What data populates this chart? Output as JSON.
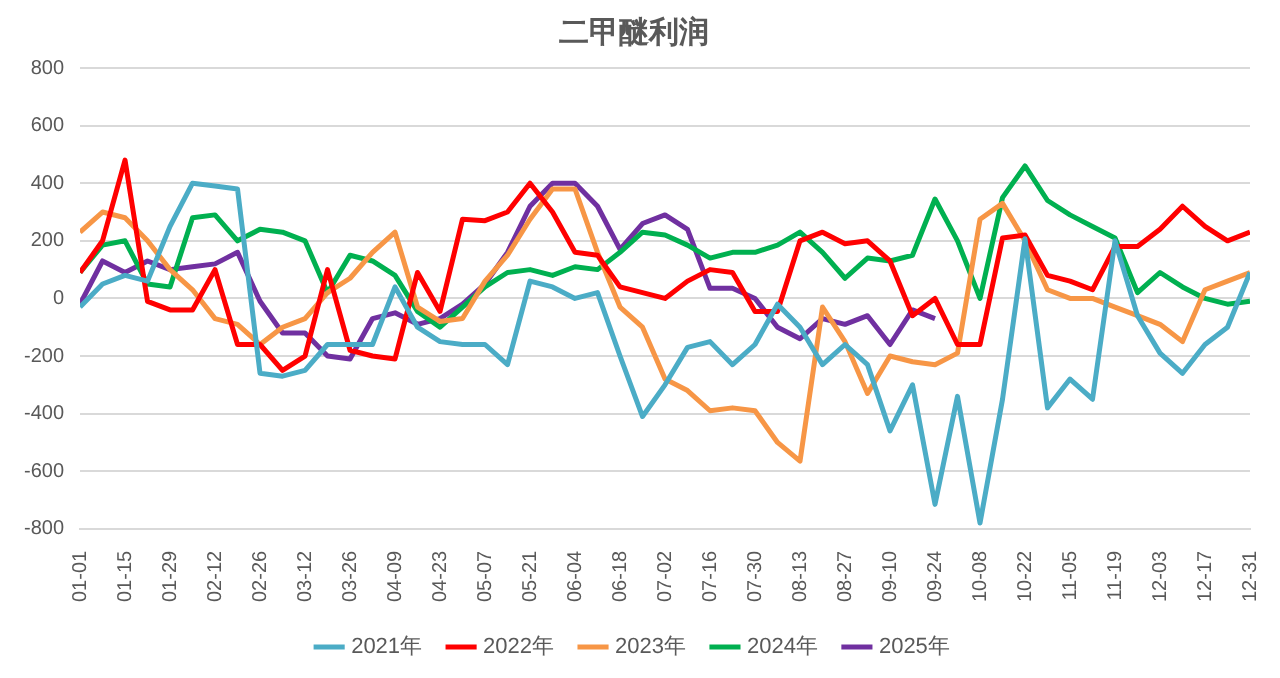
{
  "chart_data": {
    "type": "line",
    "title": "二甲醚利润",
    "x": [
      "--01-01",
      "--01-08",
      "--01-15",
      "--01-22",
      "--01-29",
      "--02-05",
      "--02-12",
      "--02-19",
      "--02-26",
      "--03-05",
      "--03-12",
      "--03-19",
      "--03-26",
      "--04-02",
      "--04-09",
      "--04-16",
      "--04-23",
      "--04-30",
      "--05-07",
      "--05-14",
      "--05-21",
      "--05-28",
      "--06-04",
      "--06-11",
      "--06-18",
      "--06-25",
      "--07-02",
      "--07-09",
      "--07-16",
      "--07-23",
      "--07-30",
      "--08-06",
      "--08-13",
      "--08-20",
      "--08-27",
      "--09-03",
      "--09-10",
      "--09-17",
      "--09-24",
      "--10-01",
      "--10-08",
      "--10-15",
      "--10-22",
      "--10-29",
      "--11-05",
      "--11-12",
      "--11-19",
      "--11-26",
      "--12-03",
      "--12-10",
      "--12-17",
      "--12-24",
      "--12-31"
    ],
    "series": [
      {
        "name": "2021年",
        "color": "#4bacc6",
        "values": [
          -30,
          50,
          80,
          60,
          250,
          400,
          390,
          380,
          -260,
          -270,
          -250,
          -160,
          -160,
          -160,
          40,
          -100,
          -150,
          -160,
          -160,
          -230,
          60,
          40,
          0,
          20,
          -200,
          -410,
          -300,
          -170,
          -150,
          -230,
          -160,
          -20,
          -100,
          -230,
          -160,
          -230,
          -460,
          -300,
          -715,
          -340,
          -780,
          -350,
          207,
          -380,
          -280,
          -350,
          200,
          -60,
          -190,
          -260,
          -160,
          -100,
          90
        ]
      },
      {
        "name": "2022年",
        "color": "#ff0000",
        "values": [
          90,
          200,
          480,
          -10,
          -40,
          -40,
          100,
          -160,
          -160,
          -250,
          -200,
          100,
          -180,
          -200,
          -210,
          90,
          -45,
          275,
          270,
          300,
          400,
          300,
          160,
          150,
          40,
          20,
          0,
          60,
          100,
          90,
          -45,
          -45,
          200,
          230,
          190,
          200,
          130,
          -60,
          0,
          -160,
          -160,
          210,
          220,
          80,
          60,
          30,
          180,
          180,
          240,
          320,
          250,
          200,
          230
        ]
      },
      {
        "name": "2023年",
        "color": "#f79646",
        "values": [
          230,
          300,
          280,
          200,
          100,
          30,
          -70,
          -90,
          -160,
          -100,
          -70,
          20,
          70,
          160,
          230,
          -30,
          -80,
          -70,
          60,
          150,
          275,
          380,
          380,
          160,
          -30,
          -100,
          -280,
          -320,
          -390,
          -380,
          -390,
          -500,
          -565,
          -30,
          -150,
          -330,
          -200,
          -220,
          -230,
          -190,
          275,
          330,
          200,
          30,
          0,
          0,
          -30,
          -60,
          -90,
          -150,
          30,
          60,
          90
        ]
      },
      {
        "name": "2024年",
        "color": "#00b050",
        "values": [
          90,
          185,
          200,
          50,
          40,
          280,
          290,
          200,
          240,
          230,
          200,
          20,
          150,
          130,
          80,
          -45,
          -100,
          -30,
          40,
          90,
          100,
          80,
          110,
          100,
          160,
          230,
          220,
          185,
          140,
          160,
          160,
          185,
          230,
          160,
          70,
          140,
          130,
          150,
          345,
          200,
          0,
          350,
          460,
          340,
          290,
          250,
          210,
          20,
          90,
          40,
          0,
          -20,
          -10
        ]
      },
      {
        "name": "2025年",
        "color": "#7030a0",
        "values": [
          -20,
          130,
          90,
          130,
          100,
          110,
          120,
          160,
          -10,
          -120,
          -120,
          -200,
          -210,
          -70,
          -50,
          -90,
          -70,
          -20,
          50,
          160,
          320,
          400,
          400,
          320,
          170,
          260,
          290,
          240,
          35,
          35,
          0,
          -100,
          -140,
          -70,
          -90,
          -60,
          -160,
          -40,
          -70,
          null,
          null,
          null,
          null,
          null,
          null,
          null,
          null,
          null,
          null,
          null,
          null,
          null,
          null
        ]
      }
    ],
    "xlim": [
      "--01-01",
      "--12-31"
    ],
    "xticks": [
      {
        "value": "--01-01",
        "label": "01-01"
      },
      {
        "value": "--01-15",
        "label": "01-15"
      },
      {
        "value": "--01-29",
        "label": "01-29"
      },
      {
        "value": "--02-12",
        "label": "02-12"
      },
      {
        "value": "--02-26",
        "label": "02-26"
      },
      {
        "value": "--03-12",
        "label": "03-12"
      },
      {
        "value": "--03-26",
        "label": "03-26"
      },
      {
        "value": "--04-09",
        "label": "04-09"
      },
      {
        "value": "--04-23",
        "label": "04-23"
      },
      {
        "value": "--05-07",
        "label": "05-07"
      },
      {
        "value": "--05-21",
        "label": "05-21"
      },
      {
        "value": "--06-04",
        "label": "06-04"
      },
      {
        "value": "--06-18",
        "label": "06-18"
      },
      {
        "value": "--07-02",
        "label": "07-02"
      },
      {
        "value": "--07-16",
        "label": "07-16"
      },
      {
        "value": "--07-30",
        "label": "07-30"
      },
      {
        "value": "--08-13",
        "label": "08-13"
      },
      {
        "value": "--08-27",
        "label": "08-27"
      },
      {
        "value": "--09-10",
        "label": "09-10"
      },
      {
        "value": "--09-24",
        "label": "09-24"
      },
      {
        "value": "--10-08",
        "label": "10-08"
      },
      {
        "value": "--10-22",
        "label": "10-22"
      },
      {
        "value": "--11-05",
        "label": "11-05"
      },
      {
        "value": "--11-19",
        "label": "11-19"
      },
      {
        "value": "--12-03",
        "label": "12-03"
      },
      {
        "value": "--12-17",
        "label": "12-17"
      },
      {
        "value": "--12-31",
        "label": "12-31"
      }
    ],
    "ylim": [
      -800,
      800
    ],
    "yticks": [
      -800,
      -600,
      -400,
      -200,
      0,
      200,
      400,
      600,
      800
    ],
    "grid": "y",
    "legend": "bottom",
    "marker": "none",
    "line_style": "solid"
  }
}
